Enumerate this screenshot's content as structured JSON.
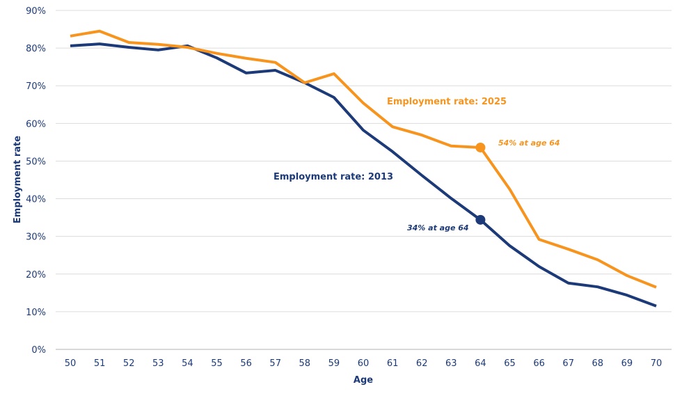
{
  "chart_data": {
    "type": "line",
    "xlabel": "Age",
    "ylabel": "Employment rate",
    "x": [
      50,
      51,
      52,
      53,
      54,
      55,
      56,
      57,
      58,
      59,
      60,
      61,
      62,
      63,
      64,
      65,
      66,
      67,
      68,
      69,
      70
    ],
    "ylim": [
      0,
      90
    ],
    "yticks": [
      "0%",
      "10%",
      "20%",
      "30%",
      "40%",
      "50%",
      "60%",
      "70%",
      "80%",
      "90%"
    ],
    "ytick_values": [
      0,
      10,
      20,
      30,
      40,
      50,
      60,
      70,
      80,
      90
    ],
    "grid": true,
    "series": [
      {
        "name": "Employment rate: 2013",
        "color": "#1d3a78",
        "values": [
          80.6,
          81.1,
          80.2,
          79.5,
          80.6,
          77.4,
          73.4,
          74.1,
          70.8,
          66.9,
          58.2,
          52.5,
          46.2,
          40.1,
          34.4,
          27.5,
          22.0,
          17.6,
          16.6,
          14.4,
          11.5
        ],
        "highlight": {
          "x": 64,
          "y": 34.4,
          "label": "34% at age 64"
        }
      },
      {
        "name": "Employment rate: 2025",
        "color": "#f7941d",
        "values": [
          83.2,
          84.5,
          81.5,
          81.0,
          80.2,
          78.6,
          77.3,
          76.2,
          70.8,
          73.2,
          65.4,
          59.1,
          56.9,
          54.0,
          53.6,
          42.5,
          29.2,
          26.6,
          23.8,
          19.6,
          16.5
        ],
        "highlight": {
          "x": 64,
          "y": 53.6,
          "label": "54% at age 64"
        }
      }
    ]
  }
}
